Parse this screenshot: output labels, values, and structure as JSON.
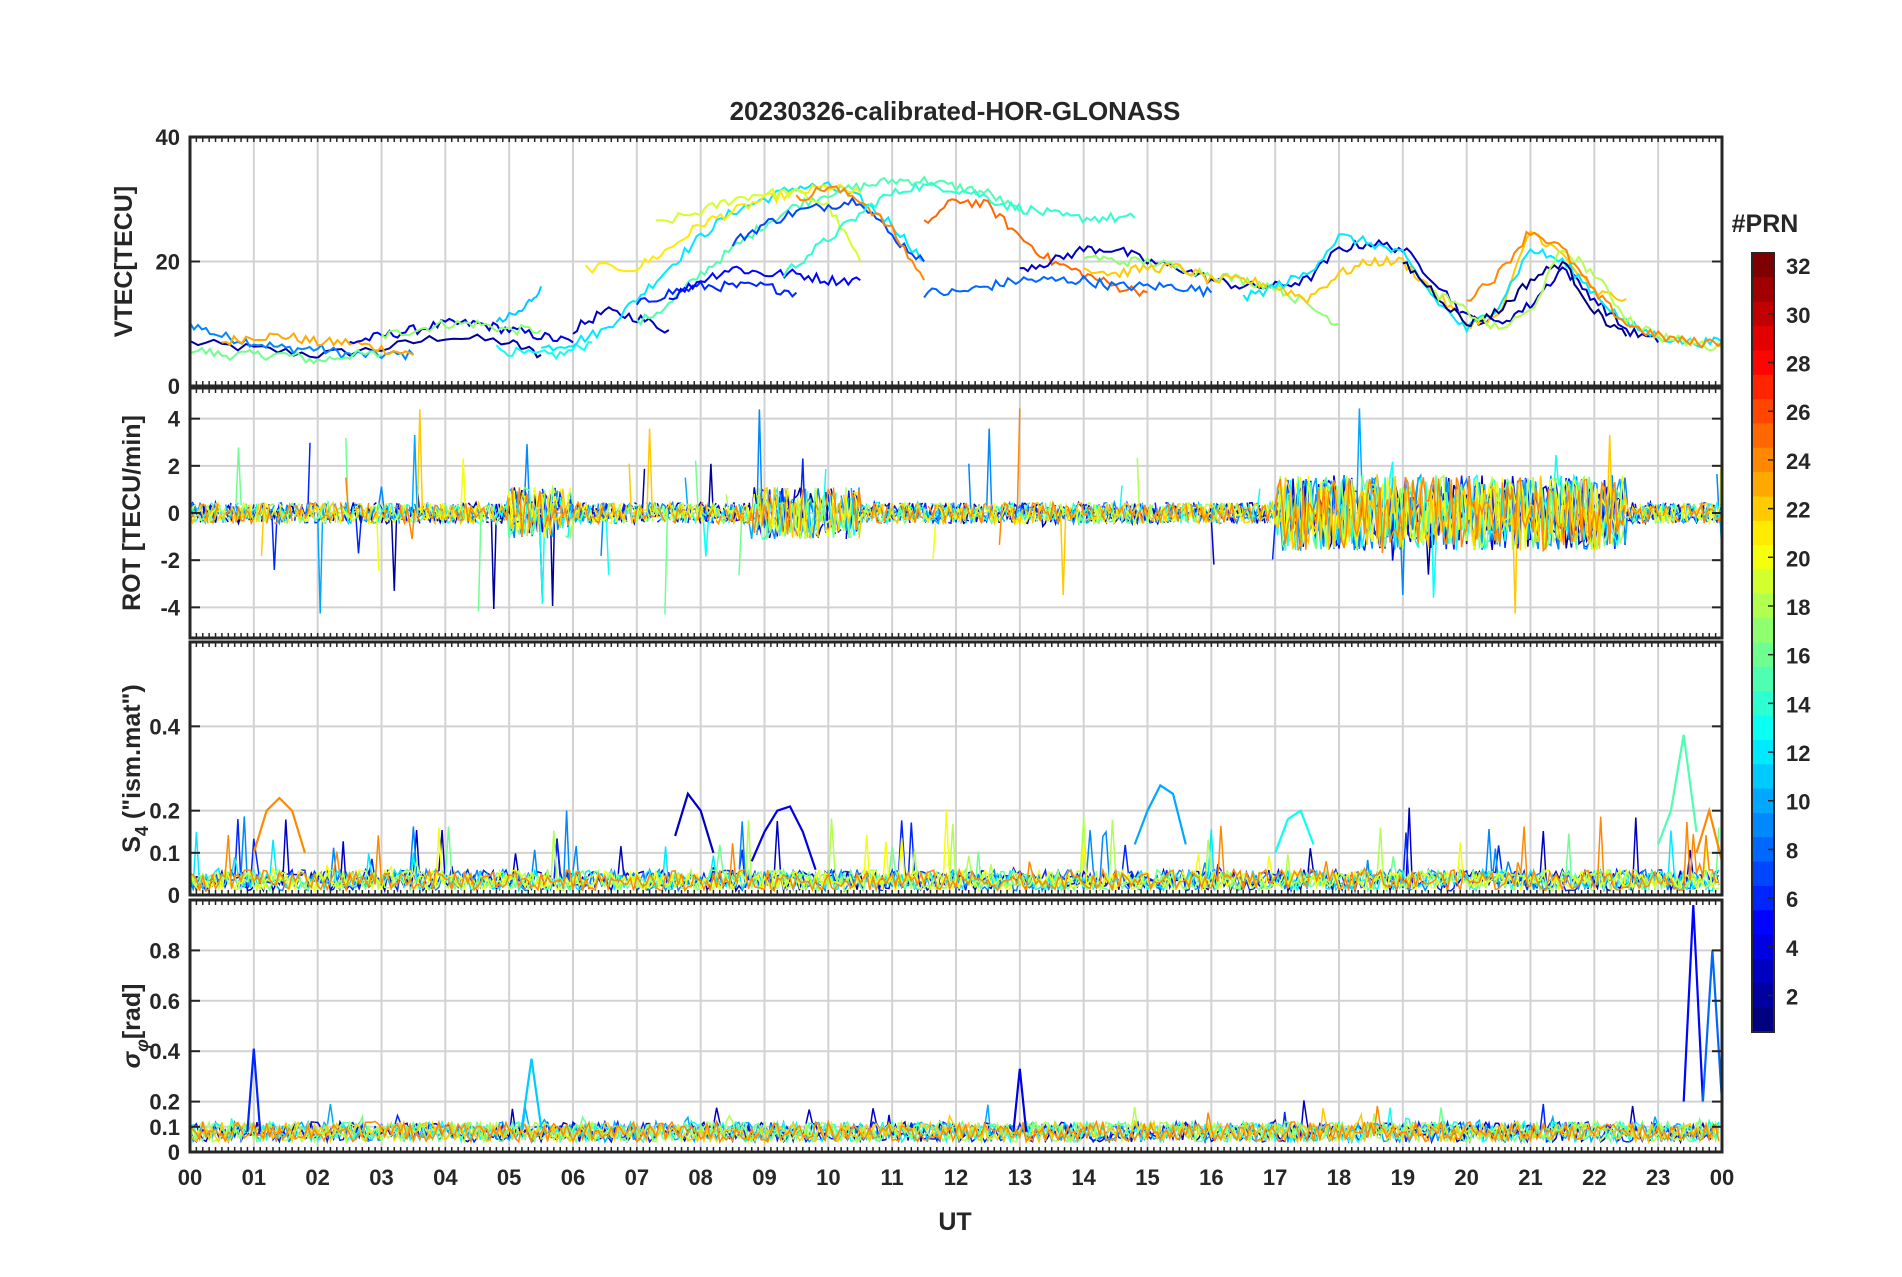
{
  "chart_data": {
    "type": "line",
    "title": "20230326-calibrated-HOR-GLONASS",
    "xlabel": "UT",
    "x_ticks": [
      "00",
      "01",
      "02",
      "03",
      "04",
      "05",
      "06",
      "07",
      "08",
      "09",
      "10",
      "11",
      "12",
      "13",
      "14",
      "15",
      "16",
      "17",
      "18",
      "19",
      "20",
      "21",
      "22",
      "23",
      "00"
    ],
    "x_range_hours": [
      0,
      24
    ],
    "grid": true,
    "colorbar": {
      "label": "#PRN",
      "range": [
        1,
        32
      ],
      "ticks": [
        "32",
        "30",
        "28",
        "26",
        "24",
        "22",
        "20",
        "18",
        "16",
        "14",
        "12",
        "10",
        "8",
        "6",
        "4",
        "2"
      ],
      "colormap": "jet",
      "placement": "right"
    },
    "panels": [
      {
        "ylabel": "VTEC[TECU]",
        "ylim": [
          0,
          40
        ],
        "y_ticks": [
          "40",
          "20",
          "0"
        ],
        "series": [
          {
            "prn": 2,
            "x": [
              0,
              1,
              2,
              3,
              4,
              5,
              5.5
            ],
            "y": [
              7,
              6,
              5,
              6,
              8,
              7,
              5
            ]
          },
          {
            "prn": 9,
            "x": [
              0,
              0.5,
              1,
              1.5,
              2,
              2.5,
              3,
              3.5
            ],
            "y": [
              10,
              8,
              7,
              6,
              6,
              5,
              5,
              5
            ]
          },
          {
            "prn": 16,
            "x": [
              0,
              0.5,
              1,
              1.5,
              2,
              2.5,
              3
            ],
            "y": [
              6,
              5,
              5,
              5,
              4,
              5,
              5
            ]
          },
          {
            "prn": 23,
            "x": [
              0.5,
              1,
              1.5,
              2,
              2.5,
              3,
              3.5
            ],
            "y": [
              7,
              8,
              8,
              7,
              7,
              6,
              5
            ]
          },
          {
            "prn": 4,
            "x": [
              2.5,
              3,
              3.5,
              4,
              4.5,
              5,
              5.5,
              6
            ],
            "y": [
              7,
              8,
              9,
              10,
              10,
              9,
              8,
              7
            ]
          },
          {
            "prn": 17,
            "x": [
              3,
              3.5,
              4,
              4.5,
              5,
              5.5
            ],
            "y": [
              8,
              9,
              10,
              10,
              9,
              9
            ]
          },
          {
            "prn": 11,
            "x": [
              4.8,
              5.2,
              5.5
            ],
            "y": [
              10,
              12,
              16
            ]
          },
          {
            "prn": 13,
            "x": [
              4.8,
              5.3,
              5.8,
              6.3
            ],
            "y": [
              6,
              5,
              5,
              7
            ]
          },
          {
            "prn": 3,
            "x": [
              6,
              6.5,
              7,
              7.5
            ],
            "y": [
              9,
              12,
              11,
              9
            ]
          },
          {
            "prn": 12,
            "x": [
              5.5,
              6,
              6.5,
              7,
              7.5,
              8,
              8.5,
              9,
              9.5,
              10,
              10.5,
              11,
              11.5
            ],
            "y": [
              6,
              7,
              9,
              14,
              19,
              24,
              28,
              30,
              32,
              32,
              30,
              26,
              20
            ]
          },
          {
            "prn": 15,
            "x": [
              7,
              7.5,
              8,
              8.5,
              9,
              9.5,
              10,
              10.5,
              11,
              11.5,
              12,
              12.5,
              13
            ],
            "y": [
              10,
              13,
              18,
              22,
              26,
              29,
              31,
              32,
              33,
              33,
              32,
              31,
              28
            ]
          },
          {
            "prn": 21,
            "x": [
              6.2,
              7,
              7.5,
              8,
              8.5,
              9,
              9.5,
              10,
              10.5
            ],
            "y": [
              19,
              19,
              22,
              26,
              28,
              30,
              31,
              32,
              31
            ]
          },
          {
            "prn": 19,
            "x": [
              7.3,
              8,
              8.5,
              9,
              9.5,
              10,
              10.5
            ],
            "y": [
              26,
              28,
              30,
              31,
              31,
              29,
              20
            ]
          },
          {
            "prn": 6,
            "x": [
              7,
              7.5,
              8,
              8.5,
              9,
              9.5
            ],
            "y": [
              13,
              15,
              16,
              16,
              16,
              15
            ]
          },
          {
            "prn": 5,
            "x": [
              7.5,
              8,
              8.5,
              9,
              9.5,
              10,
              10.5
            ],
            "y": [
              14,
              17,
              19,
              18,
              18,
              17,
              17
            ]
          },
          {
            "prn": 7,
            "x": [
              8.5,
              9,
              9.5,
              10,
              10.5,
              11,
              11.5
            ],
            "y": [
              23,
              26,
              28,
              29,
              30,
              24,
              20
            ]
          },
          {
            "prn": 24,
            "x": [
              9.5,
              10,
              10.5,
              11,
              11.5
            ],
            "y": [
              30,
              32,
              30,
              25,
              17
            ]
          },
          {
            "prn": 14,
            "x": [
              9.3,
              9.8,
              10.3,
              10.8,
              11.3,
              11.8,
              12.3,
              12.8,
              13.3,
              13.8,
              14.3,
              14.8
            ],
            "y": [
              18,
              22,
              26,
              30,
              32,
              32,
              31,
              29,
              28,
              27,
              27,
              27
            ]
          },
          {
            "prn": 25,
            "x": [
              11.5,
              12,
              12.5,
              13,
              13.5,
              14,
              14.5,
              15
            ],
            "y": [
              26,
              30,
              29,
              24,
              20,
              18,
              16,
              15
            ]
          },
          {
            "prn": 8,
            "x": [
              11.5,
              12,
              12.5,
              13,
              13.5,
              14,
              14.5,
              15,
              15.5,
              16
            ],
            "y": [
              15,
              15,
              16,
              17,
              17,
              17,
              16,
              16,
              16,
              15
            ]
          },
          {
            "prn": 3,
            "x": [
              13,
              13.5,
              14,
              14.5,
              15,
              15.5,
              16,
              16.5,
              17,
              17.5,
              18,
              18.5,
              19,
              19.5,
              20,
              20.5,
              21,
              21.5,
              22,
              22.5,
              23
            ],
            "y": [
              19,
              20,
              22,
              22,
              20,
              19,
              17,
              16,
              16,
              17,
              22,
              23,
              22,
              17,
              11,
              10,
              13,
              19,
              14,
              9,
              7
            ]
          },
          {
            "prn": 17,
            "x": [
              14,
              14.5,
              15,
              15.5,
              16,
              16.5,
              17,
              17.5,
              18
            ],
            "y": [
              21,
              20,
              20,
              19,
              18,
              17,
              16,
              13,
              10
            ]
          },
          {
            "prn": 22,
            "x": [
              14,
              14.5,
              15,
              15.5,
              16,
              16.5,
              17,
              17.5,
              18,
              18.5,
              19,
              19.5,
              20,
              20.5,
              21,
              21.5,
              22,
              22.5
            ],
            "y": [
              19,
              18,
              19,
              19,
              17,
              17,
              16,
              14,
              18,
              20,
              20,
              15,
              10,
              11,
              25,
              21,
              15,
              14
            ]
          },
          {
            "prn": 12,
            "x": [
              16.5,
              17,
              17.5,
              18,
              18.5,
              19,
              19.5,
              20,
              20.5,
              21,
              21.5,
              22,
              22.5,
              23,
              23.5,
              24
            ],
            "y": [
              14,
              16,
              18,
              24,
              23,
              21,
              14,
              9,
              13,
              22,
              20,
              15,
              10,
              8,
              7,
              7
            ]
          },
          {
            "prn": 1,
            "x": [
              19,
              19.5,
              20,
              20.5,
              21,
              21.5,
              22,
              22.5
            ],
            "y": [
              20,
              15,
              10,
              12,
              17,
              20,
              12,
              8
            ]
          },
          {
            "prn": 18,
            "x": [
              19.5,
              20,
              20.5,
              21,
              21.5,
              22,
              22.5,
              23,
              23.5,
              24
            ],
            "y": [
              15,
              12,
              9,
              12,
              22,
              18,
              11,
              8,
              7,
              6
            ]
          },
          {
            "prn": 24,
            "x": [
              20,
              20.5,
              21,
              21.5,
              22,
              22.5,
              23,
              23.5,
              24
            ],
            "y": [
              14,
              18,
              25,
              22,
              15,
              10,
              8,
              7,
              7
            ]
          }
        ]
      },
      {
        "ylabel": "ROT [TECU/min]",
        "ylim": [
          -5.3,
          5.3
        ],
        "y_ticks": [
          "4",
          "2",
          "0",
          "-2",
          "-4"
        ],
        "series": []
      },
      {
        "ylabel": "S4 (\"ism.mat\")",
        "ylabel_parts": {
          "base": "S",
          "sub": "4",
          "rest": " (\"ism.mat\")"
        },
        "ylim": [
          0,
          0.6
        ],
        "y_ticks": [
          "0.4",
          "0.2",
          "0.1",
          "0"
        ],
        "series": [
          {
            "prn": 24,
            "x": [
              1,
              1.2,
              1.4,
              1.6,
              1.8
            ],
            "y": [
              0.1,
              0.2,
              0.23,
              0.2,
              0.1
            ]
          },
          {
            "prn": 3,
            "x": [
              7.6,
              7.8,
              8,
              8.2
            ],
            "y": [
              0.14,
              0.24,
              0.2,
              0.1
            ]
          },
          {
            "prn": 4,
            "x": [
              8.8,
              9,
              9.2,
              9.4,
              9.6,
              9.8
            ],
            "y": [
              0.08,
              0.15,
              0.2,
              0.21,
              0.15,
              0.06
            ]
          },
          {
            "prn": 10,
            "x": [
              14.8,
              15,
              15.2,
              15.4,
              15.6
            ],
            "y": [
              0.12,
              0.2,
              0.26,
              0.24,
              0.12
            ]
          },
          {
            "prn": 13,
            "x": [
              17,
              17.2,
              17.4,
              17.6
            ],
            "y": [
              0.1,
              0.18,
              0.2,
              0.12
            ]
          },
          {
            "prn": 15,
            "x": [
              23,
              23.2,
              23.4,
              23.6
            ],
            "y": [
              0.12,
              0.2,
              0.38,
              0.15
            ]
          },
          {
            "prn": 24,
            "x": [
              23.6,
              23.8,
              24
            ],
            "y": [
              0.1,
              0.2,
              0.08
            ]
          }
        ]
      },
      {
        "ylabel": "σφ[rad]",
        "ylabel_parts": {
          "base": "σ",
          "sub": "φ",
          "rest": "[rad]"
        },
        "ylim": [
          0,
          1.0
        ],
        "y_ticks": [
          "0.8",
          "0.6",
          "0.4",
          "0.2",
          "0.1",
          "0"
        ],
        "series": [
          {
            "prn": 6,
            "x": [
              0.9,
              1,
              1.1
            ],
            "y": [
              0.08,
              0.41,
              0.08
            ]
          },
          {
            "prn": 11,
            "x": [
              5.2,
              5.35,
              5.5
            ],
            "y": [
              0.1,
              0.37,
              0.1
            ]
          },
          {
            "prn": 4,
            "x": [
              12.9,
              13,
              13.1
            ],
            "y": [
              0.08,
              0.33,
              0.08
            ]
          },
          {
            "prn": 5,
            "x": [
              23.4,
              23.55,
              23.7
            ],
            "y": [
              0.2,
              0.98,
              0.2
            ]
          },
          {
            "prn": 8,
            "x": [
              23.7,
              23.85,
              24
            ],
            "y": [
              0.2,
              0.8,
              0.2
            ]
          }
        ]
      }
    ]
  }
}
